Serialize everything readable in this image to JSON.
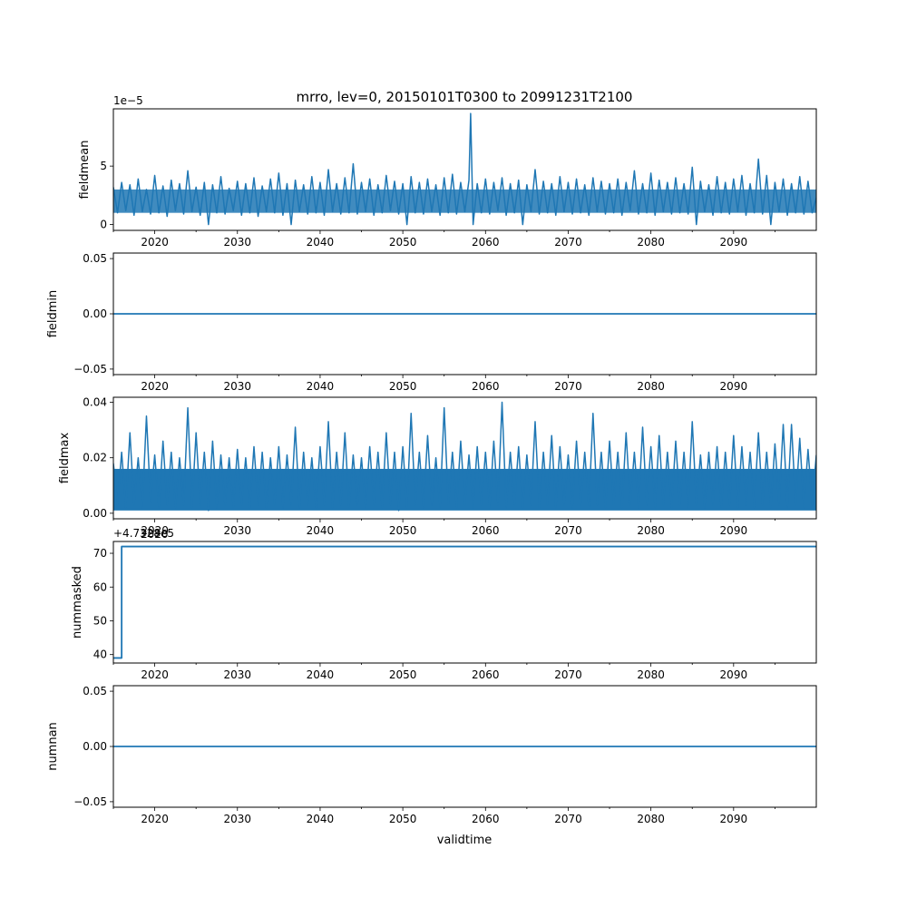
{
  "figure": {
    "title": "mrro, lev=0, 20150101T0300 to 20991231T2100",
    "xlabel": "validtime",
    "line_color": "#1f77b4"
  },
  "chart_data": [
    {
      "type": "line",
      "ylabel": "fieldmean",
      "offset_text": "1e−5",
      "xlim": [
        2015.0,
        2100.0
      ],
      "ylim": [
        -0.5,
        9.9
      ],
      "xticks": [
        2020,
        2030,
        2040,
        2050,
        2060,
        2070,
        2080,
        2090
      ],
      "xtick_labels": [
        "2020",
        "2030",
        "2040",
        "2050",
        "2060",
        "2070",
        "2080",
        "2090"
      ],
      "yticks": [
        0,
        5
      ],
      "ytick_labels": [
        "0",
        "5"
      ],
      "series": [
        {
          "x": [
            2015.0,
            2015.5,
            2016.0,
            2016.5,
            2017.0,
            2017.5,
            2018.0,
            2018.5,
            2019.0,
            2019.5,
            2020.0,
            2020.5,
            2021.0,
            2021.5,
            2022.0,
            2022.5,
            2023.0,
            2023.5,
            2024.0,
            2024.5,
            2025.0,
            2025.5,
            2026.0,
            2026.5,
            2027.0,
            2027.5,
            2028.0,
            2028.5,
            2029.0,
            2029.5,
            2030.0,
            2030.5,
            2031.0,
            2031.5,
            2032.0,
            2032.5,
            2033.0,
            2033.5,
            2034.0,
            2034.5,
            2035.0,
            2035.5,
            2036.0,
            2036.5,
            2037.0,
            2037.5,
            2038.0,
            2038.5,
            2039.0,
            2039.5,
            2040.0,
            2040.5,
            2041.0,
            2041.5,
            2042.0,
            2042.5,
            2043.0,
            2043.5,
            2044.0,
            2044.5,
            2045.0,
            2045.5,
            2046.0,
            2046.5,
            2047.0,
            2047.5,
            2048.0,
            2048.5,
            2049.0,
            2049.5,
            2050.0,
            2050.5,
            2051.0,
            2051.5,
            2052.0,
            2052.5,
            2053.0,
            2053.5,
            2054.0,
            2054.5,
            2055.0,
            2055.5,
            2056.0,
            2056.5,
            2057.0,
            2057.5,
            2058.0,
            2058.2,
            2058.5,
            2059.0,
            2059.5,
            2060.0,
            2060.5,
            2061.0,
            2061.5,
            2062.0,
            2062.5,
            2063.0,
            2063.5,
            2064.0,
            2064.5,
            2065.0,
            2065.5,
            2066.0,
            2066.5,
            2067.0,
            2067.5,
            2068.0,
            2068.5,
            2069.0,
            2069.5,
            2070.0,
            2070.5,
            2071.0,
            2071.5,
            2072.0,
            2072.5,
            2073.0,
            2073.5,
            2074.0,
            2074.5,
            2075.0,
            2075.5,
            2076.0,
            2076.5,
            2077.0,
            2077.5,
            2078.0,
            2078.5,
            2079.0,
            2079.5,
            2080.0,
            2080.5,
            2081.0,
            2081.5,
            2082.0,
            2082.5,
            2083.0,
            2083.5,
            2084.0,
            2084.5,
            2085.0,
            2085.5,
            2086.0,
            2086.5,
            2087.0,
            2087.5,
            2088.0,
            2088.5,
            2089.0,
            2089.5,
            2090.0,
            2090.5,
            2091.0,
            2091.5,
            2092.0,
            2092.5,
            2093.0,
            2093.5,
            2094.0,
            2094.5,
            2095.0,
            2095.5,
            2096.0,
            2096.5,
            2097.0,
            2097.5,
            2098.0,
            2098.5,
            2099.0,
            2099.5,
            2100.0
          ],
          "y": [
            3.2,
            1.0,
            3.6,
            1.2,
            3.4,
            0.8,
            3.9,
            1.1,
            3.0,
            0.9,
            4.2,
            1.0,
            3.3,
            0.7,
            3.8,
            1.2,
            3.5,
            0.9,
            4.6,
            1.1,
            3.2,
            0.8,
            3.6,
            0.0,
            3.4,
            1.0,
            4.1,
            0.9,
            3.1,
            1.2,
            3.7,
            0.8,
            3.5,
            1.0,
            4.0,
            0.7,
            3.3,
            1.1,
            3.9,
            1.0,
            4.4,
            0.8,
            3.5,
            0.0,
            3.8,
            1.1,
            3.4,
            0.9,
            4.1,
            1.0,
            3.6,
            0.8,
            4.7,
            1.1,
            3.5,
            0.9,
            4.0,
            1.0,
            5.2,
            0.9,
            3.6,
            1.1,
            3.9,
            0.8,
            3.4,
            1.0,
            4.2,
            1.2,
            3.7,
            0.9,
            3.5,
            0.0,
            4.1,
            1.0,
            3.6,
            0.9,
            3.9,
            1.1,
            3.4,
            0.8,
            4.0,
            1.0,
            4.3,
            0.9,
            3.6,
            1.1,
            3.8,
            9.5,
            0.0,
            3.5,
            1.0,
            3.9,
            0.9,
            3.6,
            1.2,
            4.0,
            0.8,
            3.5,
            1.0,
            3.8,
            0.0,
            3.4,
            1.1,
            4.7,
            0.9,
            3.7,
            1.0,
            3.5,
            0.8,
            4.1,
            1.1,
            3.6,
            0.9,
            3.9,
            1.0,
            3.4,
            0.8,
            4.0,
            1.1,
            3.7,
            0.9,
            3.5,
            1.0,
            3.9,
            0.8,
            3.6,
            1.2,
            4.6,
            0.9,
            3.5,
            1.0,
            4.4,
            0.8,
            3.8,
            1.1,
            3.6,
            0.9,
            4.0,
            1.0,
            3.5,
            0.9,
            4.9,
            0.0,
            3.7,
            1.1,
            3.4,
            0.8,
            4.1,
            1.0,
            3.6,
            0.9,
            3.9,
            1.1,
            4.2,
            0.8,
            3.5,
            1.0,
            5.6,
            0.9,
            4.2,
            0.0,
            3.6,
            1.1,
            3.9,
            0.8,
            3.5,
            1.0,
            4.1,
            0.9,
            3.7,
            1.0,
            2.3
          ]
        }
      ]
    },
    {
      "type": "line",
      "ylabel": "fieldmin",
      "xlim": [
        2015.0,
        2100.0
      ],
      "ylim": [
        -0.055,
        0.055
      ],
      "xticks": [
        2020,
        2030,
        2040,
        2050,
        2060,
        2070,
        2080,
        2090
      ],
      "xtick_labels": [
        "2020",
        "2030",
        "2040",
        "2050",
        "2060",
        "2070",
        "2080",
        "2090"
      ],
      "yticks": [
        -0.05,
        0.0,
        0.05
      ],
      "ytick_labels": [
        "−0.05",
        "0.00",
        "0.05"
      ],
      "series": [
        {
          "x": [
            2015.0,
            2100.0
          ],
          "y": [
            0.0,
            0.0
          ]
        }
      ]
    },
    {
      "type": "line",
      "ylabel": "fieldmax",
      "xlim": [
        2015.0,
        2100.0
      ],
      "ylim": [
        -0.002,
        0.0418
      ],
      "xticks": [
        2020,
        2030,
        2040,
        2050,
        2060,
        2070,
        2080,
        2090
      ],
      "xtick_labels": [
        "2020",
        "2030",
        "2040",
        "2050",
        "2060",
        "2070",
        "2080",
        "2090"
      ],
      "yticks": [
        0.0,
        0.02,
        0.04
      ],
      "ytick_labels": [
        "0.00",
        "0.02",
        "0.04"
      ],
      "band": {
        "low": 0.001,
        "high": 0.016
      },
      "series": [
        {
          "x": [
            2015.0,
            2015.5,
            2016.0,
            2016.5,
            2017.0,
            2017.5,
            2018.0,
            2018.5,
            2019.0,
            2019.5,
            2020.0,
            2020.5,
            2021.0,
            2021.5,
            2022.0,
            2022.5,
            2023.0,
            2023.5,
            2024.0,
            2024.5,
            2025.0,
            2025.5,
            2026.0,
            2026.5,
            2027.0,
            2027.5,
            2028.0,
            2028.5,
            2029.0,
            2029.5,
            2030.0,
            2030.5,
            2031.0,
            2031.5,
            2032.0,
            2032.5,
            2033.0,
            2033.5,
            2034.0,
            2034.5,
            2035.0,
            2035.5,
            2036.0,
            2036.5,
            2037.0,
            2037.5,
            2038.0,
            2038.5,
            2039.0,
            2039.5,
            2040.0,
            2040.5,
            2041.0,
            2041.5,
            2042.0,
            2042.5,
            2043.0,
            2043.5,
            2044.0,
            2044.5,
            2045.0,
            2045.5,
            2046.0,
            2046.5,
            2047.0,
            2047.5,
            2048.0,
            2048.5,
            2049.0,
            2049.5,
            2050.0,
            2050.5,
            2051.0,
            2051.5,
            2052.0,
            2052.5,
            2053.0,
            2053.5,
            2054.0,
            2054.5,
            2055.0,
            2055.5,
            2056.0,
            2056.5,
            2057.0,
            2057.5,
            2058.0,
            2058.5,
            2059.0,
            2059.5,
            2060.0,
            2060.5,
            2061.0,
            2061.5,
            2062.0,
            2062.5,
            2063.0,
            2063.5,
            2064.0,
            2064.5,
            2065.0,
            2065.5,
            2066.0,
            2066.5,
            2067.0,
            2067.5,
            2068.0,
            2068.5,
            2069.0,
            2069.5,
            2070.0,
            2070.5,
            2071.0,
            2071.5,
            2072.0,
            2072.5,
            2073.0,
            2073.5,
            2074.0,
            2074.5,
            2075.0,
            2075.5,
            2076.0,
            2076.5,
            2077.0,
            2077.5,
            2078.0,
            2078.5,
            2079.0,
            2079.5,
            2080.0,
            2080.5,
            2081.0,
            2081.5,
            2082.0,
            2082.5,
            2083.0,
            2083.5,
            2084.0,
            2084.5,
            2085.0,
            2085.5,
            2086.0,
            2086.5,
            2087.0,
            2087.5,
            2088.0,
            2088.5,
            2089.0,
            2089.5,
            2090.0,
            2090.5,
            2091.0,
            2091.5,
            2092.0,
            2092.5,
            2093.0,
            2093.5,
            2094.0,
            2094.5,
            2095.0,
            2095.5,
            2096.0,
            2096.5,
            2097.0,
            2097.5,
            2098.0,
            2098.5,
            2099.0,
            2099.5,
            2100.0
          ],
          "y": [
            0.018,
            0.003,
            0.022,
            0.002,
            0.029,
            0.003,
            0.02,
            0.002,
            0.035,
            0.004,
            0.021,
            0.002,
            0.026,
            0.003,
            0.022,
            0.002,
            0.02,
            0.003,
            0.038,
            0.002,
            0.029,
            0.003,
            0.022,
            0.001,
            0.026,
            0.002,
            0.021,
            0.003,
            0.02,
            0.002,
            0.023,
            0.003,
            0.02,
            0.002,
            0.024,
            0.003,
            0.022,
            0.002,
            0.02,
            0.003,
            0.024,
            0.002,
            0.021,
            0.003,
            0.031,
            0.002,
            0.022,
            0.003,
            0.02,
            0.002,
            0.024,
            0.003,
            0.033,
            0.002,
            0.022,
            0.003,
            0.029,
            0.002,
            0.021,
            0.003,
            0.02,
            0.002,
            0.024,
            0.003,
            0.022,
            0.002,
            0.029,
            0.003,
            0.022,
            0.001,
            0.024,
            0.002,
            0.036,
            0.003,
            0.022,
            0.002,
            0.028,
            0.003,
            0.02,
            0.002,
            0.038,
            0.003,
            0.022,
            0.002,
            0.026,
            0.003,
            0.021,
            0.002,
            0.024,
            0.003,
            0.022,
            0.002,
            0.026,
            0.003,
            0.04,
            0.002,
            0.022,
            0.003,
            0.024,
            0.002,
            0.021,
            0.003,
            0.033,
            0.002,
            0.022,
            0.003,
            0.028,
            0.002,
            0.024,
            0.003,
            0.021,
            0.002,
            0.026,
            0.003,
            0.022,
            0.002,
            0.036,
            0.003,
            0.022,
            0.002,
            0.026,
            0.003,
            0.022,
            0.002,
            0.029,
            0.003,
            0.022,
            0.002,
            0.031,
            0.003,
            0.024,
            0.002,
            0.028,
            0.003,
            0.022,
            0.002,
            0.026,
            0.003,
            0.022,
            0.002,
            0.033,
            0.003,
            0.021,
            0.002,
            0.022,
            0.003,
            0.024,
            0.002,
            0.022,
            0.003,
            0.028,
            0.002,
            0.024,
            0.003,
            0.022,
            0.002,
            0.029,
            0.003,
            0.022,
            0.002,
            0.025,
            0.003,
            0.032,
            0.002,
            0.032,
            0.003,
            0.027,
            0.002,
            0.023,
            0.003,
            0.021
          ]
        }
      ]
    },
    {
      "type": "line",
      "ylabel": "nummasked",
      "offset_text": "+4.7328e5",
      "x_offset_text": "2020",
      "xlim": [
        2015.0,
        2100.0
      ],
      "ylim": [
        37.5,
        73.5
      ],
      "xticks": [
        2020,
        2030,
        2040,
        2050,
        2060,
        2070,
        2080,
        2090
      ],
      "xtick_labels": [
        "2020",
        "2030",
        "2040",
        "2050",
        "2060",
        "2070",
        "2080",
        "2090"
      ],
      "yticks": [
        40,
        50,
        60,
        70
      ],
      "ytick_labels": [
        "40",
        "50",
        "60",
        "70"
      ],
      "series": [
        {
          "x": [
            2015.0,
            2016.0,
            2016.0,
            2100.0
          ],
          "y": [
            39,
            39,
            72,
            72
          ]
        }
      ]
    },
    {
      "type": "line",
      "ylabel": "numnan",
      "xlim": [
        2015.0,
        2100.0
      ],
      "ylim": [
        -0.055,
        0.055
      ],
      "xticks": [
        2020,
        2030,
        2040,
        2050,
        2060,
        2070,
        2080,
        2090
      ],
      "xtick_labels": [
        "2020",
        "2030",
        "2040",
        "2050",
        "2060",
        "2070",
        "2080",
        "2090"
      ],
      "yticks": [
        -0.05,
        0.0,
        0.05
      ],
      "ytick_labels": [
        "−0.05",
        "0.00",
        "0.05"
      ],
      "series": [
        {
          "x": [
            2015.0,
            2100.0
          ],
          "y": [
            0.0,
            0.0
          ]
        }
      ]
    }
  ]
}
